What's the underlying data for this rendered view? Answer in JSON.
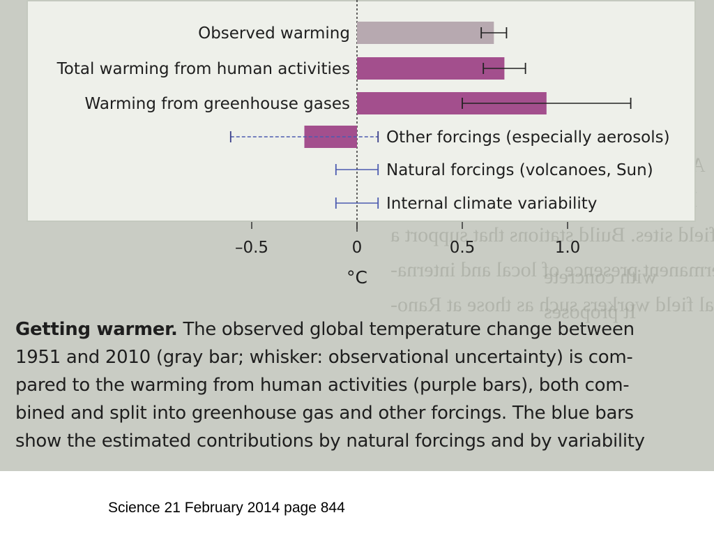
{
  "chart_data": {
    "type": "bar",
    "orientation": "horizontal",
    "xlabel": "°C",
    "xticks": [
      "–0.5",
      "0",
      "0.5",
      "1.0"
    ],
    "xtick_values": [
      -0.5,
      0,
      0.5,
      1.0
    ],
    "xlim": [
      -0.62,
      1.15
    ],
    "label_side_note": "labels left of zero axis for positive bars, right of axis for others",
    "bars": [
      {
        "label": "Observed warming",
        "value": 0.65,
        "err_low": 0.59,
        "err_high": 0.71,
        "color": "#b7a9b0",
        "label_position": "left"
      },
      {
        "label": "Total warming from human activities",
        "value": 0.7,
        "err_low": 0.6,
        "err_high": 0.8,
        "color": "#a34f8d",
        "label_position": "left"
      },
      {
        "label": "Warming from greenhouse gases",
        "value": 0.9,
        "err_low": 0.5,
        "err_high": 1.3,
        "color": "#a34f8d",
        "label_position": "left"
      },
      {
        "label": "Other forcings (especially aerosols)",
        "value": -0.25,
        "err_low": -0.6,
        "err_high": 0.1,
        "color": "#a34f8d",
        "label_position": "right"
      },
      {
        "label": "Natural forcings (volcanoes, Sun)",
        "value": 0.0,
        "err_low": -0.1,
        "err_high": 0.1,
        "color": "#4b5bb0",
        "label_position": "right"
      },
      {
        "label": "Internal climate variability",
        "value": 0.0,
        "err_low": -0.1,
        "err_high": 0.1,
        "color": "#4b5bb0",
        "label_position": "right"
      }
    ],
    "colors": {
      "observed": "#b7a9b0",
      "human": "#a34f8d",
      "natural": "#4b5bb0",
      "axis": "#333333"
    }
  },
  "caption": {
    "title": "Getting warmer.",
    "lines": [
      " The observed global temperature change between",
      "1951 and 2010 (gray bar; whisker: observational uncertainty) is com-",
      "pared to the warming from human activities (purple bars), both com-",
      "bined and split into greenhouse gas and other forcings. The blue bars",
      "show the estimated contributions by natural forcings and by variability"
    ]
  },
  "source": "Science 21 February 2014 page 844"
}
